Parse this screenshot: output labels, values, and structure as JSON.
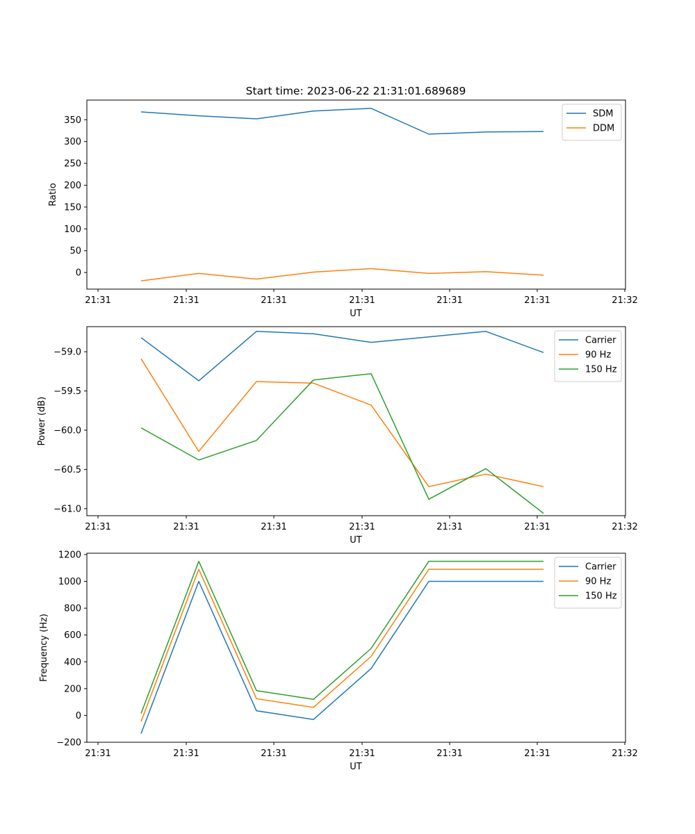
{
  "figure_title": "Start time: 2023-06-22 21:31:01.689689",
  "chart_data": [
    {
      "type": "line",
      "title": "Start time: 2023-06-22 21:31:01.689689",
      "xlabel": "UT",
      "ylabel": "Ratio",
      "x_tick_labels": [
        "21:31",
        "21:31",
        "21:31",
        "21:31",
        "21:31",
        "21:31",
        "21:32"
      ],
      "y_ticks": [
        0,
        50,
        100,
        150,
        200,
        250,
        300,
        350
      ],
      "ylim": [
        -38,
        395
      ],
      "grid": false,
      "legend_position": "top-right",
      "series": [
        {
          "name": "SDM",
          "color": "#1f77b4",
          "values": [
            368,
            359,
            352,
            370,
            376,
            317,
            322,
            323
          ]
        },
        {
          "name": "DDM",
          "color": "#ff7f0e",
          "values": [
            -19,
            -2,
            -15,
            1,
            9,
            -2,
            2,
            -6
          ]
        }
      ]
    },
    {
      "type": "line",
      "title": "",
      "xlabel": "UT",
      "ylabel": "Power (dB)",
      "x_tick_labels": [
        "21:31",
        "21:31",
        "21:31",
        "21:31",
        "21:31",
        "21:31",
        "21:32"
      ],
      "y_ticks": [
        -59.0,
        -59.5,
        -60.0,
        -60.5,
        -61.0
      ],
      "y_tick_labels": [
        "−59.0",
        "−59.5",
        "−60.0",
        "−60.5",
        "−61.0"
      ],
      "ylim": [
        -61.09,
        -58.68
      ],
      "grid": false,
      "legend_position": "top-right",
      "series": [
        {
          "name": "Carrier",
          "color": "#1f77b4",
          "values": [
            -58.82,
            -59.37,
            -58.74,
            -58.77,
            -58.88,
            -58.81,
            -58.74,
            -59.01
          ]
        },
        {
          "name": "90 Hz",
          "color": "#ff7f0e",
          "values": [
            -59.09,
            -60.27,
            -59.38,
            -59.4,
            -59.68,
            -60.72,
            -60.56,
            -60.72
          ]
        },
        {
          "name": "150 Hz",
          "color": "#2ca02c",
          "values": [
            -59.97,
            -60.38,
            -60.13,
            -59.36,
            -59.28,
            -60.88,
            -60.49,
            -61.06
          ]
        }
      ]
    },
    {
      "type": "line",
      "title": "",
      "xlabel": "UT",
      "ylabel": "Frequency (Hz)",
      "x_tick_labels": [
        "21:31",
        "21:31",
        "21:31",
        "21:31",
        "21:31",
        "21:31",
        "21:32"
      ],
      "y_ticks": [
        -200,
        0,
        200,
        400,
        600,
        800,
        1000,
        1200
      ],
      "y_tick_labels": [
        "−200",
        "0",
        "200",
        "400",
        "600",
        "800",
        "1000",
        "1200"
      ],
      "ylim": [
        -200,
        1210
      ],
      "grid": false,
      "legend_position": "top-right",
      "series": [
        {
          "name": "Carrier",
          "color": "#1f77b4",
          "values": [
            -135,
            1000,
            35,
            -30,
            350,
            1000,
            1000,
            1000
          ]
        },
        {
          "name": "90 Hz",
          "color": "#ff7f0e",
          "values": [
            -45,
            1090,
            125,
            60,
            440,
            1090,
            1090,
            1090
          ]
        },
        {
          "name": "150 Hz",
          "color": "#2ca02c",
          "values": [
            15,
            1150,
            185,
            120,
            500,
            1150,
            1150,
            1150
          ]
        }
      ]
    }
  ]
}
